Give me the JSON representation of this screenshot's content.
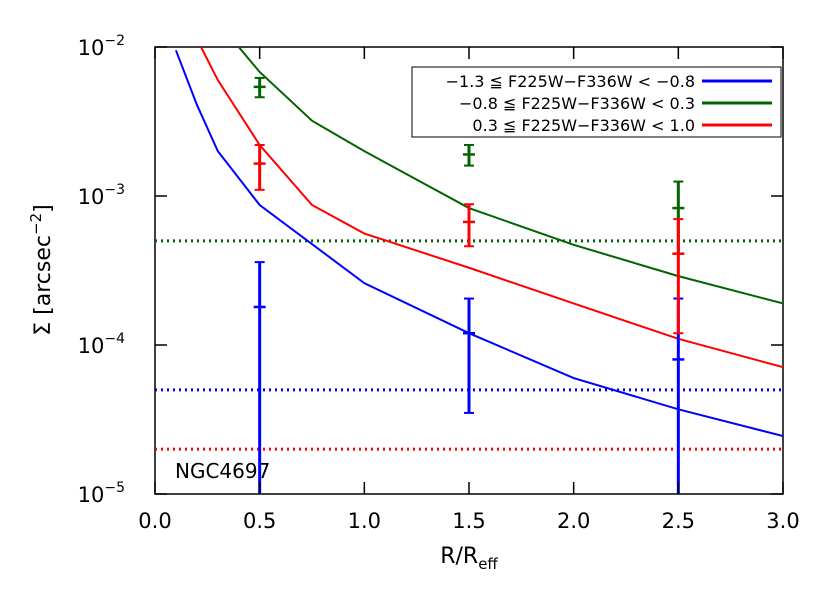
{
  "chart_data": {
    "type": "errorbar",
    "annotation": "NGC4697",
    "x_label": {
      "text": "R/R",
      "subscript": "eff"
    },
    "y_label": {
      "text": "Σ [arcsec",
      "superscript": "−2",
      "suffix": "]"
    },
    "xlim": [
      0.0,
      3.0
    ],
    "xticks": [
      {
        "value": 0,
        "label": "0.0"
      },
      {
        "value": 0.5,
        "label": "0.5"
      },
      {
        "value": 1,
        "label": "1.0"
      },
      {
        "value": 1.5,
        "label": "1.5"
      },
      {
        "value": 2,
        "label": "2.0"
      },
      {
        "value": 2.5,
        "label": "2.5"
      },
      {
        "value": 3,
        "label": "3.0"
      }
    ],
    "ylim": [
      1e-05,
      0.01
    ],
    "y_log": true,
    "yticks": [
      {
        "value": 1e-05,
        "label": "10",
        "exponent": "−5"
      },
      {
        "value": 0.0001,
        "label": "10",
        "exponent": "−4"
      },
      {
        "value": 0.001,
        "label": "10",
        "exponent": "−3"
      },
      {
        "value": 0.01,
        "label": "10",
        "exponent": "−2"
      }
    ],
    "legend_position": "upper right",
    "series": [
      {
        "name": "−1.3 ≦ F225W−F336W < −0.8",
        "color": "#0000ff",
        "x": [
          0.5,
          1.5,
          2.5
        ],
        "values": [
          0.00018,
          0.00012,
          8e-05
        ],
        "errors": [
          0.00018,
          8.5e-05,
          0.000125
        ]
      },
      {
        "name": "−0.8 ≦ F225W−F336W < 0.3",
        "color": "#006400",
        "x": [
          0.5,
          1.5,
          2.5
        ],
        "values": [
          0.0054,
          0.0019,
          0.00083
        ],
        "errors": [
          0.0008,
          0.0003,
          0.00042
        ]
      },
      {
        "name": "0.3 ≦ F225W−F336W < 1.0",
        "color": "#ff0000",
        "x": [
          0.5,
          1.5,
          2.5
        ],
        "values": [
          0.00165,
          0.00067,
          0.00041
        ],
        "errors": [
          0.00055,
          0.00021,
          0.00029
        ]
      }
    ],
    "curves": [
      {
        "color": "#0000ff",
        "x": [
          0.1,
          0.2,
          0.3,
          0.5,
          1.0,
          1.5,
          2.0,
          2.5,
          3.0
        ],
        "values": [
          0.0095,
          0.0041,
          0.002,
          0.00087,
          0.00026,
          0.00012,
          6e-05,
          3.7e-05,
          2.45e-05
        ]
      },
      {
        "color": "#006400",
        "x": [
          0.4,
          0.5,
          0.75,
          1.0,
          1.5,
          2.0,
          2.5,
          3.0
        ],
        "values": [
          0.01,
          0.0068,
          0.0032,
          0.002,
          0.00083,
          0.00047,
          0.00029,
          0.00019
        ]
      },
      {
        "color": "#ff0000",
        "x": [
          0.22,
          0.3,
          0.5,
          0.75,
          1.0,
          1.5,
          2.0,
          2.5,
          3.0
        ],
        "values": [
          0.01,
          0.006,
          0.0022,
          0.00087,
          0.00056,
          0.00033,
          0.00019,
          0.00011,
          7.1e-05
        ]
      }
    ],
    "hlines": [
      {
        "color": "#006400",
        "value": 0.0005
      },
      {
        "color": "#0000ff",
        "value": 5e-05
      },
      {
        "color": "#ff0000",
        "value": 2e-05
      }
    ]
  }
}
